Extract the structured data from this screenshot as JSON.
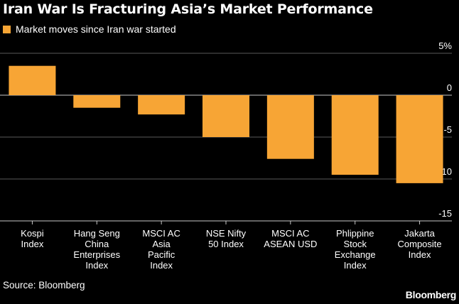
{
  "title": "Iran War Is Fracturing Asia’s Market Performance",
  "legend": {
    "label": "Market moves since Iran war started",
    "color": "#f7a535"
  },
  "source": "Source: Bloomberg",
  "brand": "Bloomberg",
  "chart_data": {
    "type": "bar",
    "title": "Iran War Is Fracturing Asia’s Market Performance",
    "xlabel": "",
    "ylabel": "",
    "ylim": [
      -15,
      5
    ],
    "yticks": [
      5,
      0,
      -5,
      -10,
      -15
    ],
    "ytick_labels": [
      "5%",
      "0",
      "-5",
      "-10",
      "-15"
    ],
    "grid": true,
    "legend_position": "top-left",
    "bar_color": "#f7a535",
    "categories": [
      [
        "Kospi",
        "Index"
      ],
      [
        "Hang Seng",
        "China",
        "Enterprises",
        "Index"
      ],
      [
        "MSCI AC",
        "Asia",
        "Pacific",
        "Index"
      ],
      [
        "NSE Nifty",
        "50 Index"
      ],
      [
        "MSCI AC",
        "ASEAN USD"
      ],
      [
        "Phlippine",
        "Stock",
        "Exchange",
        "Index"
      ],
      [
        "Jakarta",
        "Composite",
        "Index"
      ]
    ],
    "series": [
      {
        "name": "Market moves since Iran war started",
        "values": [
          3.5,
          -1.5,
          -2.3,
          -5.0,
          -7.6,
          -9.5,
          -10.5
        ]
      }
    ]
  }
}
